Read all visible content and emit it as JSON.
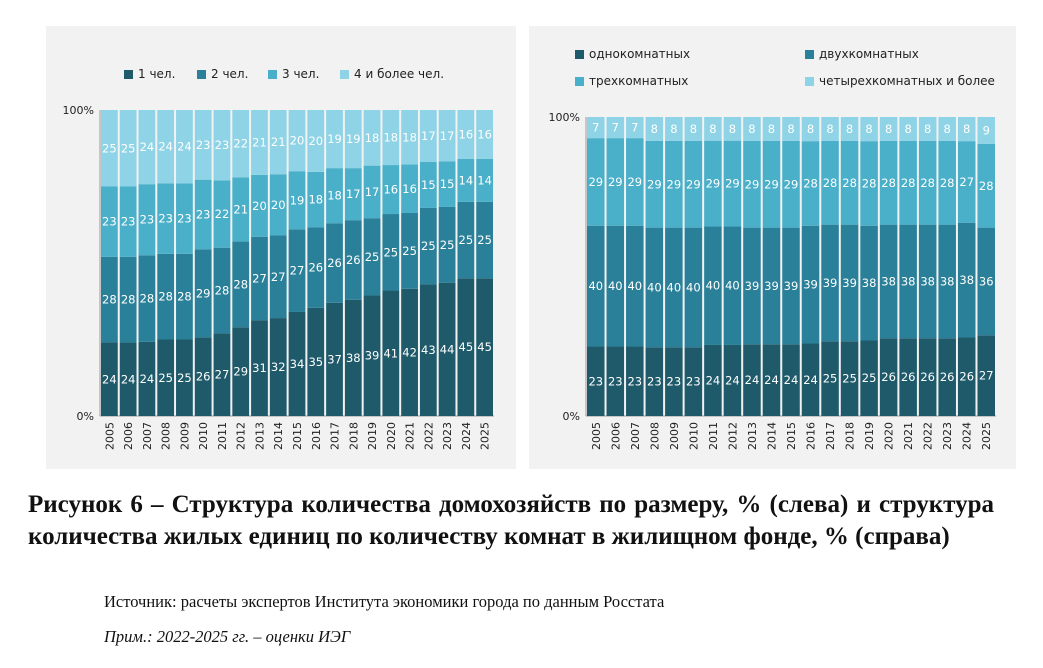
{
  "colors": {
    "dark": "#1f5a6b",
    "mid": "#2b8099",
    "light": "#4aafc9",
    "lightest": "#8fd3e6"
  },
  "caption": "Рисунок 6 – Структура количества домохозяйств по размеру, % (слева) и структура количества жилых единиц по количеству комнат в жилищном фонде, % (справа)",
  "source": "Источник: расчеты экспертов Института экономики города по данным Росстата",
  "note": "Прим.: 2022-2025 гг. – оценки ИЭГ",
  "chart_data": [
    {
      "type": "bar",
      "stacked": true,
      "categories": [
        "2005",
        "2006",
        "2007",
        "2008",
        "2009",
        "2010",
        "2011",
        "2012",
        "2013",
        "2014",
        "2015",
        "2016",
        "2017",
        "2018",
        "2019",
        "2020",
        "2021",
        "2022",
        "2023",
        "2024",
        "2025"
      ],
      "y_ticks": [
        "0%",
        "100%"
      ],
      "ylim": [
        0,
        100
      ],
      "legend_position": "top",
      "series": [
        {
          "name": "1 чел.",
          "color": "#1f5a6b",
          "values": [
            24,
            24,
            24,
            25,
            25,
            26,
            27,
            29,
            31,
            32,
            34,
            35,
            37,
            38,
            39,
            41,
            42,
            43,
            44,
            45,
            45
          ]
        },
        {
          "name": "2 чел.",
          "color": "#2b8099",
          "values": [
            28,
            28,
            28,
            28,
            28,
            29,
            28,
            28,
            27,
            27,
            27,
            26,
            26,
            26,
            25,
            25,
            25,
            25,
            25,
            25,
            25
          ]
        },
        {
          "name": "3 чел.",
          "color": "#4aafc9",
          "values": [
            23,
            23,
            23,
            23,
            23,
            23,
            22,
            21,
            20,
            20,
            19,
            18,
            18,
            17,
            17,
            16,
            16,
            15,
            15,
            14,
            14
          ]
        },
        {
          "name": "4 и более чел.",
          "color": "#8fd3e6",
          "values": [
            25,
            25,
            24,
            24,
            24,
            23,
            23,
            22,
            21,
            21,
            20,
            20,
            19,
            19,
            18,
            18,
            18,
            17,
            17,
            16,
            16
          ]
        }
      ]
    },
    {
      "type": "bar",
      "stacked": true,
      "categories": [
        "2005",
        "2006",
        "2007",
        "2008",
        "2009",
        "2010",
        "2011",
        "2012",
        "2013",
        "2014",
        "2015",
        "2016",
        "2017",
        "2018",
        "2019",
        "2020",
        "2021",
        "2022",
        "2023",
        "2024",
        "2025"
      ],
      "y_ticks": [
        "0%",
        "100%"
      ],
      "ylim": [
        0,
        100
      ],
      "legend_position": "top",
      "series": [
        {
          "name": "однокомнатных",
          "color": "#1f5a6b",
          "values": [
            23,
            23,
            23,
            23,
            23,
            23,
            24,
            24,
            24,
            24,
            24,
            24,
            25,
            25,
            25,
            26,
            26,
            26,
            26,
            26,
            27
          ]
        },
        {
          "name": "двухкомнатных",
          "color": "#2b8099",
          "values": [
            40,
            40,
            40,
            40,
            40,
            40,
            40,
            40,
            39,
            39,
            39,
            39,
            39,
            39,
            38,
            38,
            38,
            38,
            38,
            38,
            36
          ]
        },
        {
          "name": "трехкомнатных",
          "color": "#4aafc9",
          "values": [
            29,
            29,
            29,
            29,
            29,
            29,
            29,
            29,
            29,
            29,
            29,
            28,
            28,
            28,
            28,
            28,
            28,
            28,
            28,
            27,
            28
          ]
        },
        {
          "name": "четырехкомнатных и более",
          "color": "#8fd3e6",
          "values": [
            7,
            7,
            7,
            8,
            8,
            8,
            8,
            8,
            8,
            8,
            8,
            8,
            8,
            8,
            8,
            8,
            8,
            8,
            8,
            8,
            9
          ]
        }
      ]
    }
  ]
}
